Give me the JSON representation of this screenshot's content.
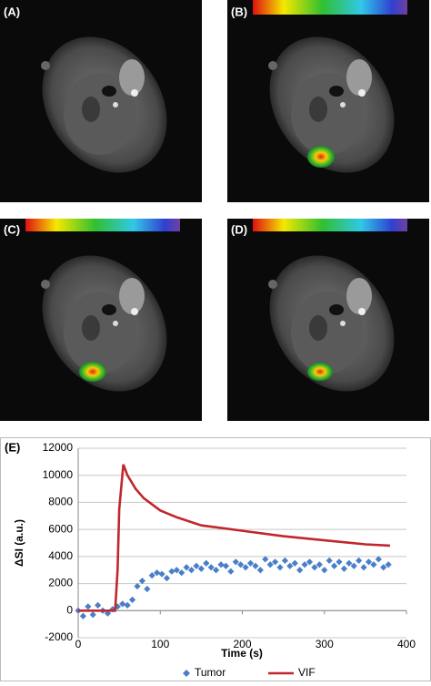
{
  "panels": [
    {
      "label": "(A)"
    },
    {
      "label": "(B)"
    },
    {
      "label": "(C)"
    },
    {
      "label": "(D)"
    }
  ],
  "chart_data": {
    "type": "line",
    "panel_label": "(E)",
    "x_label": "Time (s)",
    "y_label": "ΔSI (a.u.)",
    "xlim": [
      0,
      400
    ],
    "xticks": [
      0,
      100,
      200,
      300,
      400
    ],
    "ylim": [
      -2000,
      12000
    ],
    "yticks": [
      -2000,
      0,
      2000,
      4000,
      6000,
      8000,
      10000,
      12000
    ],
    "grid": true,
    "series": [
      {
        "name": "Tumor",
        "color": "#4a7fc8",
        "marker": "diamond",
        "x": [
          0,
          6,
          12,
          18,
          24,
          30,
          36,
          42,
          48,
          54,
          60,
          66,
          72,
          78,
          84,
          90,
          96,
          102,
          108,
          114,
          120,
          126,
          132,
          138,
          144,
          150,
          156,
          162,
          168,
          174,
          180,
          186,
          192,
          198,
          204,
          210,
          216,
          222,
          228,
          234,
          240,
          246,
          252,
          258,
          264,
          270,
          276,
          282,
          288,
          294,
          300,
          306,
          312,
          318,
          324,
          330,
          336,
          342,
          348,
          354,
          360,
          366,
          372,
          378
        ],
        "values": [
          0,
          -400,
          300,
          -300,
          400,
          0,
          -200,
          100,
          300,
          500,
          400,
          800,
          1800,
          2200,
          1600,
          2600,
          2800,
          2700,
          2400,
          2900,
          3000,
          2800,
          3200,
          3000,
          3300,
          3100,
          3500,
          3200,
          3000,
          3400,
          3300,
          2900,
          3600,
          3400,
          3200,
          3500,
          3300,
          3000,
          3800,
          3400,
          3600,
          3200,
          3700,
          3300,
          3500,
          3000,
          3400,
          3600,
          3200,
          3400,
          3000,
          3700,
          3300,
          3600,
          3100,
          3500,
          3300,
          3700,
          3200,
          3600,
          3400,
          3800,
          3200,
          3400
        ]
      },
      {
        "name": "VIF",
        "color": "#c0272d",
        "marker": "line",
        "x": [
          0,
          45,
          48,
          50,
          55,
          60,
          70,
          80,
          100,
          120,
          150,
          200,
          250,
          300,
          350,
          380
        ],
        "values": [
          0,
          0,
          3000,
          7500,
          10800,
          10000,
          9000,
          8300,
          7400,
          6900,
          6300,
          5900,
          5500,
          5200,
          4900,
          4800
        ]
      }
    ]
  }
}
